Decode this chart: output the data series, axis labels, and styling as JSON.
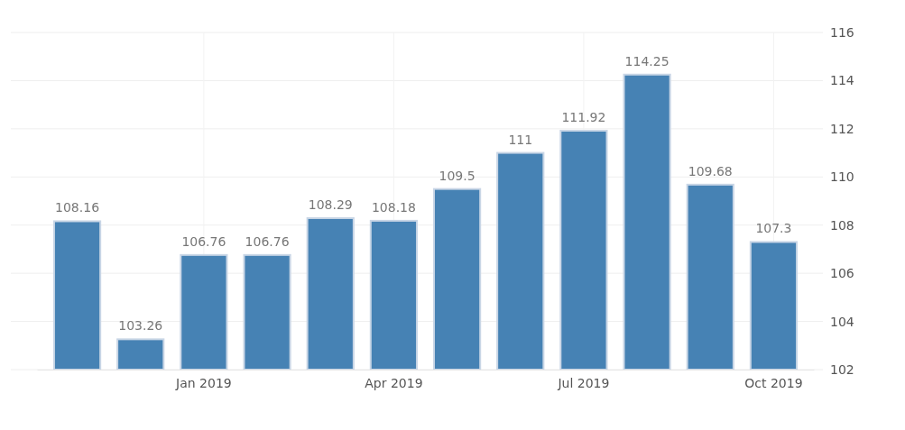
{
  "chart_data": {
    "type": "bar",
    "categories": [
      null,
      null,
      "Jan 2019",
      null,
      null,
      "Apr 2019",
      null,
      null,
      "Jul 2019",
      null,
      null,
      "Oct 2019"
    ],
    "values": [
      108.16,
      103.26,
      106.76,
      106.76,
      108.29,
      108.18,
      109.5,
      111,
      111.92,
      114.25,
      109.68,
      107.3
    ],
    "color": "#4682b4",
    "ylim": [
      102,
      116
    ],
    "yticks": [
      102,
      104,
      106,
      108,
      110,
      112,
      114,
      116
    ],
    "grid": true,
    "data_labels": true
  }
}
